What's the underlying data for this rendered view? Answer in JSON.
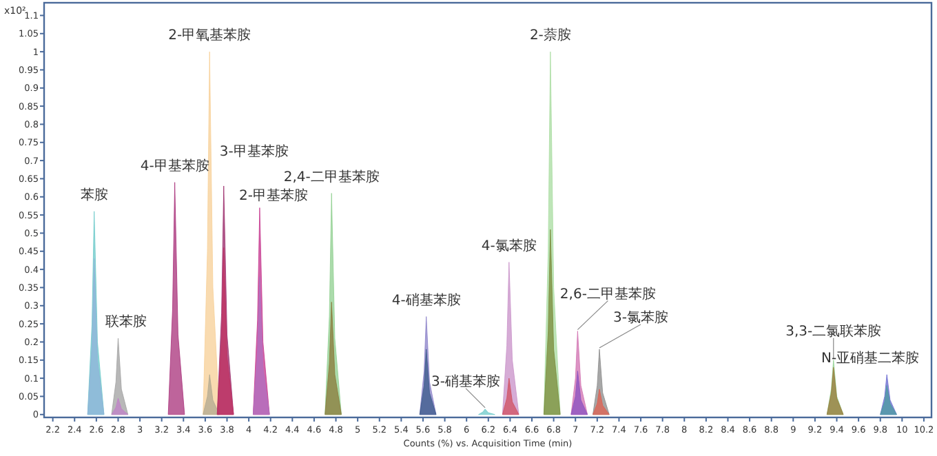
{
  "chart_data": {
    "type": "area",
    "ylabel": "x10²",
    "xlabel": "Counts (%) vs. Acquisition Time (min)",
    "xlim": [
      2.12,
      10.27
    ],
    "ylim": [
      -0.008,
      1.135
    ],
    "xticks": [
      2.2,
      2.4,
      2.6,
      2.8,
      3,
      3.2,
      3.4,
      3.6,
      3.8,
      4,
      4.2,
      4.4,
      4.6,
      4.8,
      5,
      5.2,
      5.4,
      5.6,
      5.8,
      6,
      6.2,
      6.4,
      6.6,
      6.8,
      7,
      7.2,
      7.4,
      7.6,
      7.8,
      8,
      8.2,
      8.4,
      8.6,
      8.8,
      9,
      9.2,
      9.4,
      9.6,
      9.8,
      10,
      10.2
    ],
    "yticks": [
      0,
      0.05,
      0.1,
      0.15,
      0.2,
      0.25,
      0.3,
      0.35,
      0.4,
      0.45,
      0.5,
      0.55,
      0.6,
      0.65,
      0.7,
      0.75,
      0.8,
      0.85,
      0.9,
      0.95,
      1,
      1.05,
      1.1
    ],
    "grid": false,
    "series": [
      {
        "color": "#6cc9c9",
        "x": [
          2.52,
          2.56,
          2.58,
          2.61,
          2.67
        ],
        "values": [
          0,
          0.25,
          0.56,
          0.2,
          0
        ]
      },
      {
        "color": "#8fb3d9",
        "x": [
          2.52,
          2.56,
          2.58,
          2.61,
          2.67
        ],
        "values": [
          0,
          0.19,
          0.43,
          0.15,
          0
        ]
      },
      {
        "color": "#a0a0a0",
        "x": [
          2.74,
          2.78,
          2.8,
          2.83,
          2.89
        ],
        "values": [
          0,
          0.09,
          0.21,
          0.07,
          0
        ]
      },
      {
        "color": "#c080c8",
        "x": [
          2.74,
          2.78,
          2.8,
          2.83,
          2.89
        ],
        "values": [
          0,
          0.02,
          0.045,
          0.016,
          0
        ]
      },
      {
        "color": "#a8307a",
        "x": [
          3.26,
          3.3,
          3.32,
          3.35,
          3.41
        ],
        "values": [
          0,
          0.29,
          0.64,
          0.22,
          0
        ]
      },
      {
        "color": "#f7cf95",
        "x": [
          3.58,
          3.62,
          3.64,
          3.67,
          3.73
        ],
        "values": [
          0,
          0.45,
          1.0,
          0.35,
          0
        ]
      },
      {
        "color": "#b0a890",
        "x": [
          3.58,
          3.62,
          3.64,
          3.67,
          3.73
        ],
        "values": [
          0,
          0.05,
          0.11,
          0.04,
          0
        ]
      },
      {
        "color": "#9a2a6a",
        "x": [
          3.71,
          3.75,
          3.77,
          3.8,
          3.86
        ],
        "values": [
          0,
          0.28,
          0.63,
          0.22,
          0
        ]
      },
      {
        "color": "#c03060",
        "x": [
          3.71,
          3.75,
          3.77,
          3.8,
          3.86
        ],
        "values": [
          0,
          0.21,
          0.46,
          0.16,
          0
        ]
      },
      {
        "color": "#c4338c",
        "x": [
          4.04,
          4.08,
          4.1,
          4.13,
          4.19
        ],
        "values": [
          0,
          0.26,
          0.57,
          0.2,
          0
        ]
      },
      {
        "color": "#b070c0",
        "x": [
          4.04,
          4.08,
          4.1,
          4.13,
          4.19
        ],
        "values": [
          0,
          0.17,
          0.38,
          0.13,
          0
        ]
      },
      {
        "color": "#8fcf8f",
        "x": [
          4.7,
          4.74,
          4.76,
          4.79,
          4.85
        ],
        "values": [
          0,
          0.27,
          0.61,
          0.21,
          0
        ]
      },
      {
        "color": "#8a7a3a",
        "x": [
          4.7,
          4.74,
          4.76,
          4.79,
          4.85
        ],
        "values": [
          0,
          0.14,
          0.31,
          0.11,
          0
        ]
      },
      {
        "color": "#8a80c8",
        "x": [
          5.57,
          5.61,
          5.63,
          5.66,
          5.72
        ],
        "values": [
          0,
          0.12,
          0.27,
          0.09,
          0
        ]
      },
      {
        "color": "#3a5a8a",
        "x": [
          5.57,
          5.61,
          5.63,
          5.66,
          5.72
        ],
        "values": [
          0,
          0.08,
          0.18,
          0.06,
          0
        ]
      },
      {
        "color": "#6cc9c9",
        "x": [
          6.11,
          6.15,
          6.17,
          6.2,
          6.26
        ],
        "values": [
          0,
          0.007,
          0.015,
          0.005,
          0
        ]
      },
      {
        "color": "#c890c8",
        "x": [
          6.33,
          6.37,
          6.39,
          6.42,
          6.48
        ],
        "values": [
          0,
          0.19,
          0.42,
          0.15,
          0
        ]
      },
      {
        "color": "#d05060",
        "x": [
          6.33,
          6.37,
          6.39,
          6.42,
          6.48
        ],
        "values": [
          0,
          0.045,
          0.1,
          0.035,
          0
        ]
      },
      {
        "color": "#a8dca0",
        "x": [
          6.71,
          6.75,
          6.77,
          6.8,
          6.86
        ],
        "values": [
          0,
          0.45,
          1.0,
          0.35,
          0
        ]
      },
      {
        "color": "#7a8a3a",
        "x": [
          6.71,
          6.75,
          6.77,
          6.8,
          6.86
        ],
        "values": [
          0,
          0.23,
          0.51,
          0.18,
          0
        ]
      },
      {
        "color": "#d070b0",
        "x": [
          6.96,
          7.0,
          7.02,
          7.05,
          7.11
        ],
        "values": [
          0,
          0.1,
          0.23,
          0.08,
          0
        ]
      },
      {
        "color": "#8a50c0",
        "x": [
          6.96,
          7.0,
          7.02,
          7.05,
          7.11
        ],
        "values": [
          0,
          0.05,
          0.12,
          0.04,
          0
        ]
      },
      {
        "color": "#8a8a8a",
        "x": [
          7.16,
          7.2,
          7.22,
          7.25,
          7.31
        ],
        "values": [
          0,
          0.08,
          0.18,
          0.06,
          0
        ]
      },
      {
        "color": "#e06050",
        "x": [
          7.16,
          7.2,
          7.22,
          7.25,
          7.31
        ],
        "values": [
          0,
          0.03,
          0.07,
          0.025,
          0
        ]
      },
      {
        "color": "#90d090",
        "x": [
          9.31,
          9.35,
          9.37,
          9.4,
          9.46
        ],
        "values": [
          0,
          0.07,
          0.15,
          0.05,
          0
        ]
      },
      {
        "color": "#9a7a3a",
        "x": [
          9.31,
          9.35,
          9.37,
          9.4,
          9.46
        ],
        "values": [
          0,
          0.06,
          0.13,
          0.045,
          0
        ]
      },
      {
        "color": "#6a6ad0",
        "x": [
          9.8,
          9.84,
          9.86,
          9.89,
          9.95
        ],
        "values": [
          0,
          0.05,
          0.11,
          0.04,
          0
        ]
      },
      {
        "color": "#4a9aa0",
        "x": [
          9.8,
          9.84,
          9.86,
          9.89,
          9.95
        ],
        "values": [
          0,
          0.035,
          0.08,
          0.03,
          0
        ]
      }
    ],
    "annotations": [
      {
        "text": "苯胺",
        "x": 2.58,
        "y": 0.56
      },
      {
        "text": "联苯胺",
        "x": 2.8,
        "y": 0.21
      },
      {
        "text": "4-甲基苯胺",
        "x": 3.32,
        "y": 0.64
      },
      {
        "text": "2-甲氧基苯胺",
        "x": 3.64,
        "y": 1.0
      },
      {
        "text": "3-甲基苯胺",
        "x": 3.77,
        "y": 0.63
      },
      {
        "text": "2-甲基苯胺",
        "x": 4.1,
        "y": 0.57
      },
      {
        "text": "2,4-二甲基苯胺",
        "x": 4.76,
        "y": 0.61
      },
      {
        "text": "4-硝基苯胺",
        "x": 5.63,
        "y": 0.27
      },
      {
        "text": "3-硝基苯胺",
        "x": 6.17,
        "y": 0.015
      },
      {
        "text": "4-氯苯胺",
        "x": 6.39,
        "y": 0.42
      },
      {
        "text": "2-萘胺",
        "x": 6.77,
        "y": 1.0
      },
      {
        "text": "2,6-二甲基苯胺",
        "x": 7.02,
        "y": 0.23
      },
      {
        "text": "3-氯苯胺",
        "x": 7.22,
        "y": 0.18
      },
      {
        "text": "3,3-二氯联苯胺",
        "x": 9.37,
        "y": 0.15
      },
      {
        "text": "N-亚硝基二苯胺",
        "x": 9.86,
        "y": 0.11
      }
    ]
  }
}
